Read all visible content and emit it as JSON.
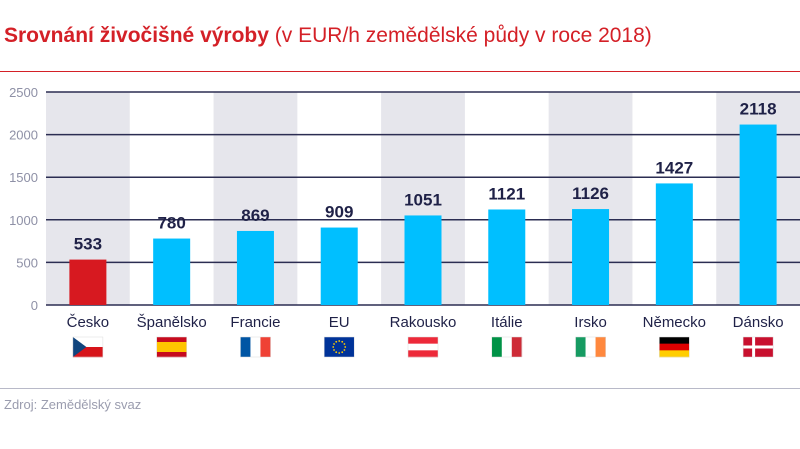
{
  "title": {
    "bold": "Srovnání živočišné výroby",
    "normal": "(v EUR/h zemědělské půdy v roce 2018)"
  },
  "source": "Zdroj: Zemědělský svaz",
  "chart_data": {
    "type": "bar",
    "title": "Srovnání živočišné výroby (v EUR/h zemědělské půdy v roce 2018)",
    "categories": [
      "Česko",
      "Španělsko",
      "Francie",
      "EU",
      "Rakousko",
      "Itálie",
      "Irsko",
      "Německo",
      "Dánsko"
    ],
    "values": [
      533,
      780,
      869,
      909,
      1051,
      1121,
      1126,
      1427,
      2118
    ],
    "flags": [
      "cz",
      "es",
      "fr",
      "eu",
      "at",
      "it",
      "ie",
      "de",
      "dk"
    ],
    "bar_colors": [
      "#d71920",
      "#00bfff",
      "#00bfff",
      "#00bfff",
      "#00bfff",
      "#00bfff",
      "#00bfff",
      "#00bfff",
      "#00bfff"
    ],
    "yticks": [
      0,
      500,
      1000,
      1500,
      2000,
      2500
    ],
    "ylim": [
      0,
      2500
    ],
    "grid": true,
    "xlabel": "",
    "ylabel": ""
  }
}
